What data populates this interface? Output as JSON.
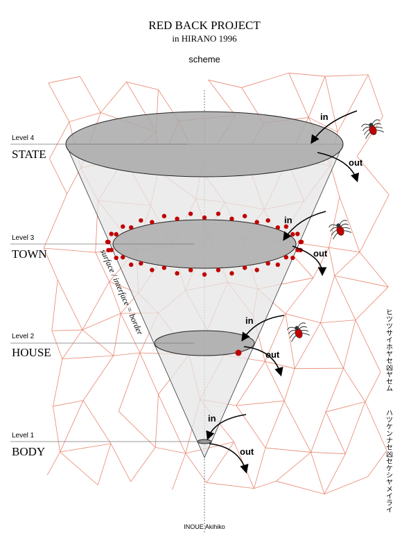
{
  "header": {
    "title": "RED BACK PROJECT",
    "subtitle": "in HIRANO 1996",
    "caption": "scheme"
  },
  "levels": [
    {
      "level": "Level 4",
      "name": "STATE"
    },
    {
      "level": "Level 3",
      "name": "TOWN"
    },
    {
      "level": "Level 2",
      "name": "HOUSE"
    },
    {
      "level": "Level 1",
      "name": "BODY"
    }
  ],
  "flows": [
    {
      "in": "in",
      "out": "out"
    },
    {
      "in": "in",
      "out": "out"
    },
    {
      "in": "in",
      "out": "out"
    },
    {
      "in": "in",
      "out": "out"
    }
  ],
  "border_label": "surface / interface = border",
  "side_text": [
    "ヒツツサイホヤセ凶ヤセム",
    "ハツケンナセ凶セケシヤメイライ"
  ],
  "footer": "INOUE Akihiko"
}
